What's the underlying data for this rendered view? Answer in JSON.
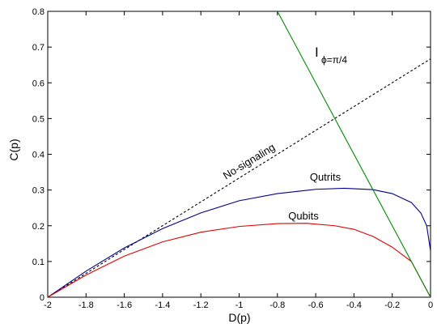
{
  "chart_data": {
    "type": "line",
    "xlabel": "D(p)",
    "ylabel": "C(p)",
    "xlim": [
      -2,
      0
    ],
    "ylim": [
      0,
      0.8
    ],
    "grid": false,
    "x_ticks": [
      "-2",
      "-1.8",
      "-1.6",
      "-1.4",
      "-1.2",
      "-1",
      "-0.8",
      "-0.6",
      "-0.4",
      "-0.2",
      "0"
    ],
    "y_ticks": [
      "0",
      "0.1",
      "0.2",
      "0.3",
      "0.4",
      "0.5",
      "0.6",
      "0.7",
      "0.8"
    ],
    "series": [
      {
        "name": "No-signaling",
        "color": "#000000",
        "style": "dashed",
        "x": [
          -2,
          0
        ],
        "y": [
          0,
          0.667
        ]
      },
      {
        "name": "Qutrits",
        "color": "#00008b",
        "style": "solid",
        "x": [
          -2,
          -1.8,
          -1.6,
          -1.4,
          -1.2,
          -1.0,
          -0.8,
          -0.6,
          -0.45,
          -0.3,
          -0.2,
          -0.1,
          -0.05,
          -0.02,
          0
        ],
        "y": [
          0,
          0.073,
          0.138,
          0.192,
          0.236,
          0.27,
          0.29,
          0.302,
          0.305,
          0.301,
          0.29,
          0.265,
          0.235,
          0.2,
          0.13
        ]
      },
      {
        "name": "Qubits",
        "color": "#e00000",
        "style": "solid",
        "x": [
          -2,
          -1.8,
          -1.6,
          -1.4,
          -1.2,
          -1.0,
          -0.8,
          -0.65,
          -0.5,
          -0.4,
          -0.3,
          -0.2,
          -0.1,
          0
        ],
        "y": [
          0,
          0.062,
          0.115,
          0.155,
          0.182,
          0.198,
          0.206,
          0.207,
          0.2,
          0.19,
          0.17,
          0.14,
          0.1,
          0
        ]
      },
      {
        "name": "I_phi=pi/4",
        "color": "#008a00",
        "style": "solid",
        "x": [
          -0.8,
          -0.1,
          0
        ],
        "y": [
          0.8,
          0.1,
          0
        ]
      }
    ],
    "annotations": {
      "no_signaling": "No-signaling",
      "qutrits": "Qutrits",
      "qubits": "Qubits",
      "i_main": "I",
      "i_sub": "ϕ=π/4"
    }
  }
}
